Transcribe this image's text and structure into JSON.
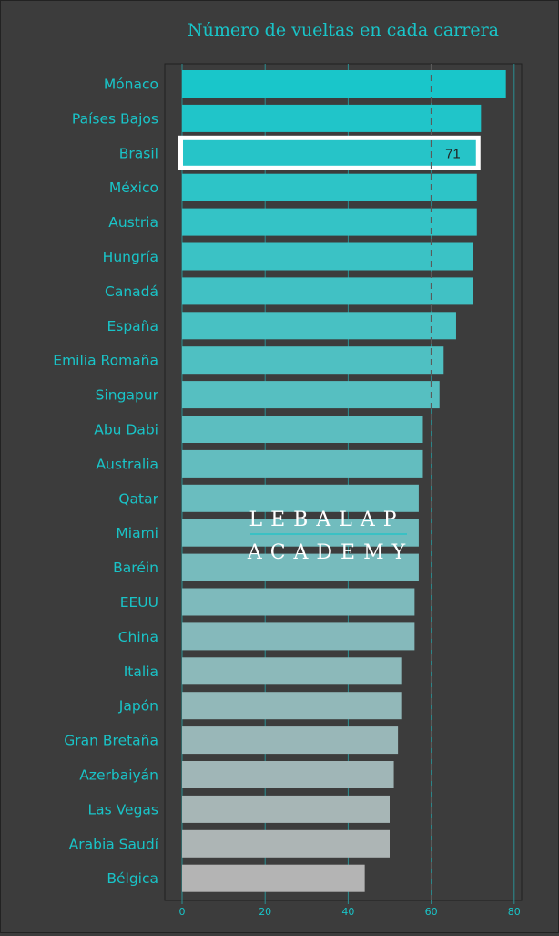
{
  "chart_data": {
    "type": "bar",
    "orientation": "horizontal",
    "title": "Número de vueltas en cada carrera",
    "categories": [
      "Mónaco",
      "Países Bajos",
      "Brasil",
      "México",
      "Austria",
      "Hungría",
      "Canadá",
      "España",
      "Emilia Romaña",
      "Singapur",
      "Abu Dabi",
      "Australia",
      "Qatar",
      "Miami",
      "Baréin",
      "EEUU",
      "China",
      "Italia",
      "Japón",
      "Gran Bretaña",
      "Azerbaiyán",
      "Las Vegas",
      "Arabia Saudí",
      "Bélgica"
    ],
    "values": [
      78,
      72,
      71,
      71,
      71,
      70,
      70,
      66,
      63,
      62,
      58,
      58,
      57,
      57,
      57,
      56,
      56,
      53,
      53,
      52,
      51,
      50,
      50,
      44
    ],
    "xlim": [
      0,
      80
    ],
    "xticks": [
      0,
      20,
      40,
      60,
      80
    ],
    "mean_line": 60,
    "highlighted_category": "Brasil",
    "highlighted_value_label": "71",
    "grid": "vertical",
    "xlabel": "",
    "ylabel": ""
  },
  "watermark": {
    "line1": "LEBALAP",
    "line2": "ACADEMY"
  },
  "colors": {
    "background": "#3c3c3c",
    "text_accent": "#19c4c8",
    "bar_top": "#19c6ca",
    "bar_bottom": "#b4b4b4",
    "highlight_border": "#ffffff",
    "gridline": "#2a8f92",
    "mean_line": "#5a5a5a"
  }
}
